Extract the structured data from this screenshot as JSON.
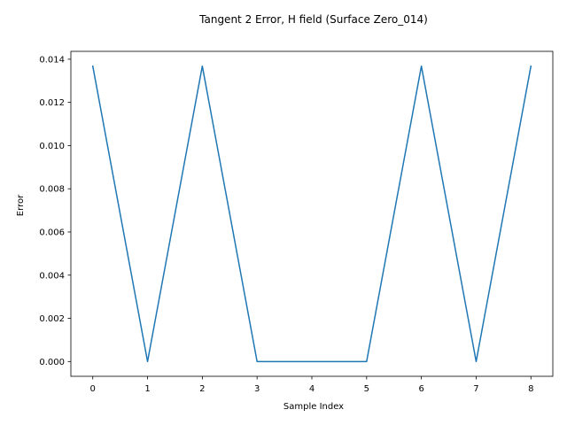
{
  "chart_data": {
    "type": "line",
    "title": "Tangent 2 Error, H field (Surface Zero_014)",
    "xlabel": "Sample Index",
    "ylabel": "Error",
    "x": [
      0,
      1,
      2,
      3,
      4,
      5,
      6,
      7,
      8
    ],
    "series": [
      {
        "values": [
          0.01368,
          0.0,
          0.01368,
          0.0,
          0.0,
          0.0,
          0.01368,
          0.0,
          0.01368
        ],
        "color": "#1f77b4"
      }
    ],
    "xlim": [
      -0.4,
      8.4
    ],
    "ylim": [
      -0.000684,
      0.014364
    ],
    "xticks": [
      0,
      1,
      2,
      3,
      4,
      5,
      6,
      7,
      8
    ],
    "yticks": [
      0.0,
      0.002,
      0.004,
      0.006,
      0.008,
      0.01,
      0.012,
      0.014
    ],
    "xtick_labels": [
      "0",
      "1",
      "2",
      "3",
      "4",
      "5",
      "6",
      "7",
      "8"
    ],
    "ytick_labels": [
      "0.000",
      "0.002",
      "0.004",
      "0.006",
      "0.008",
      "0.010",
      "0.012",
      "0.014"
    ],
    "grid": false,
    "legend": "none"
  }
}
